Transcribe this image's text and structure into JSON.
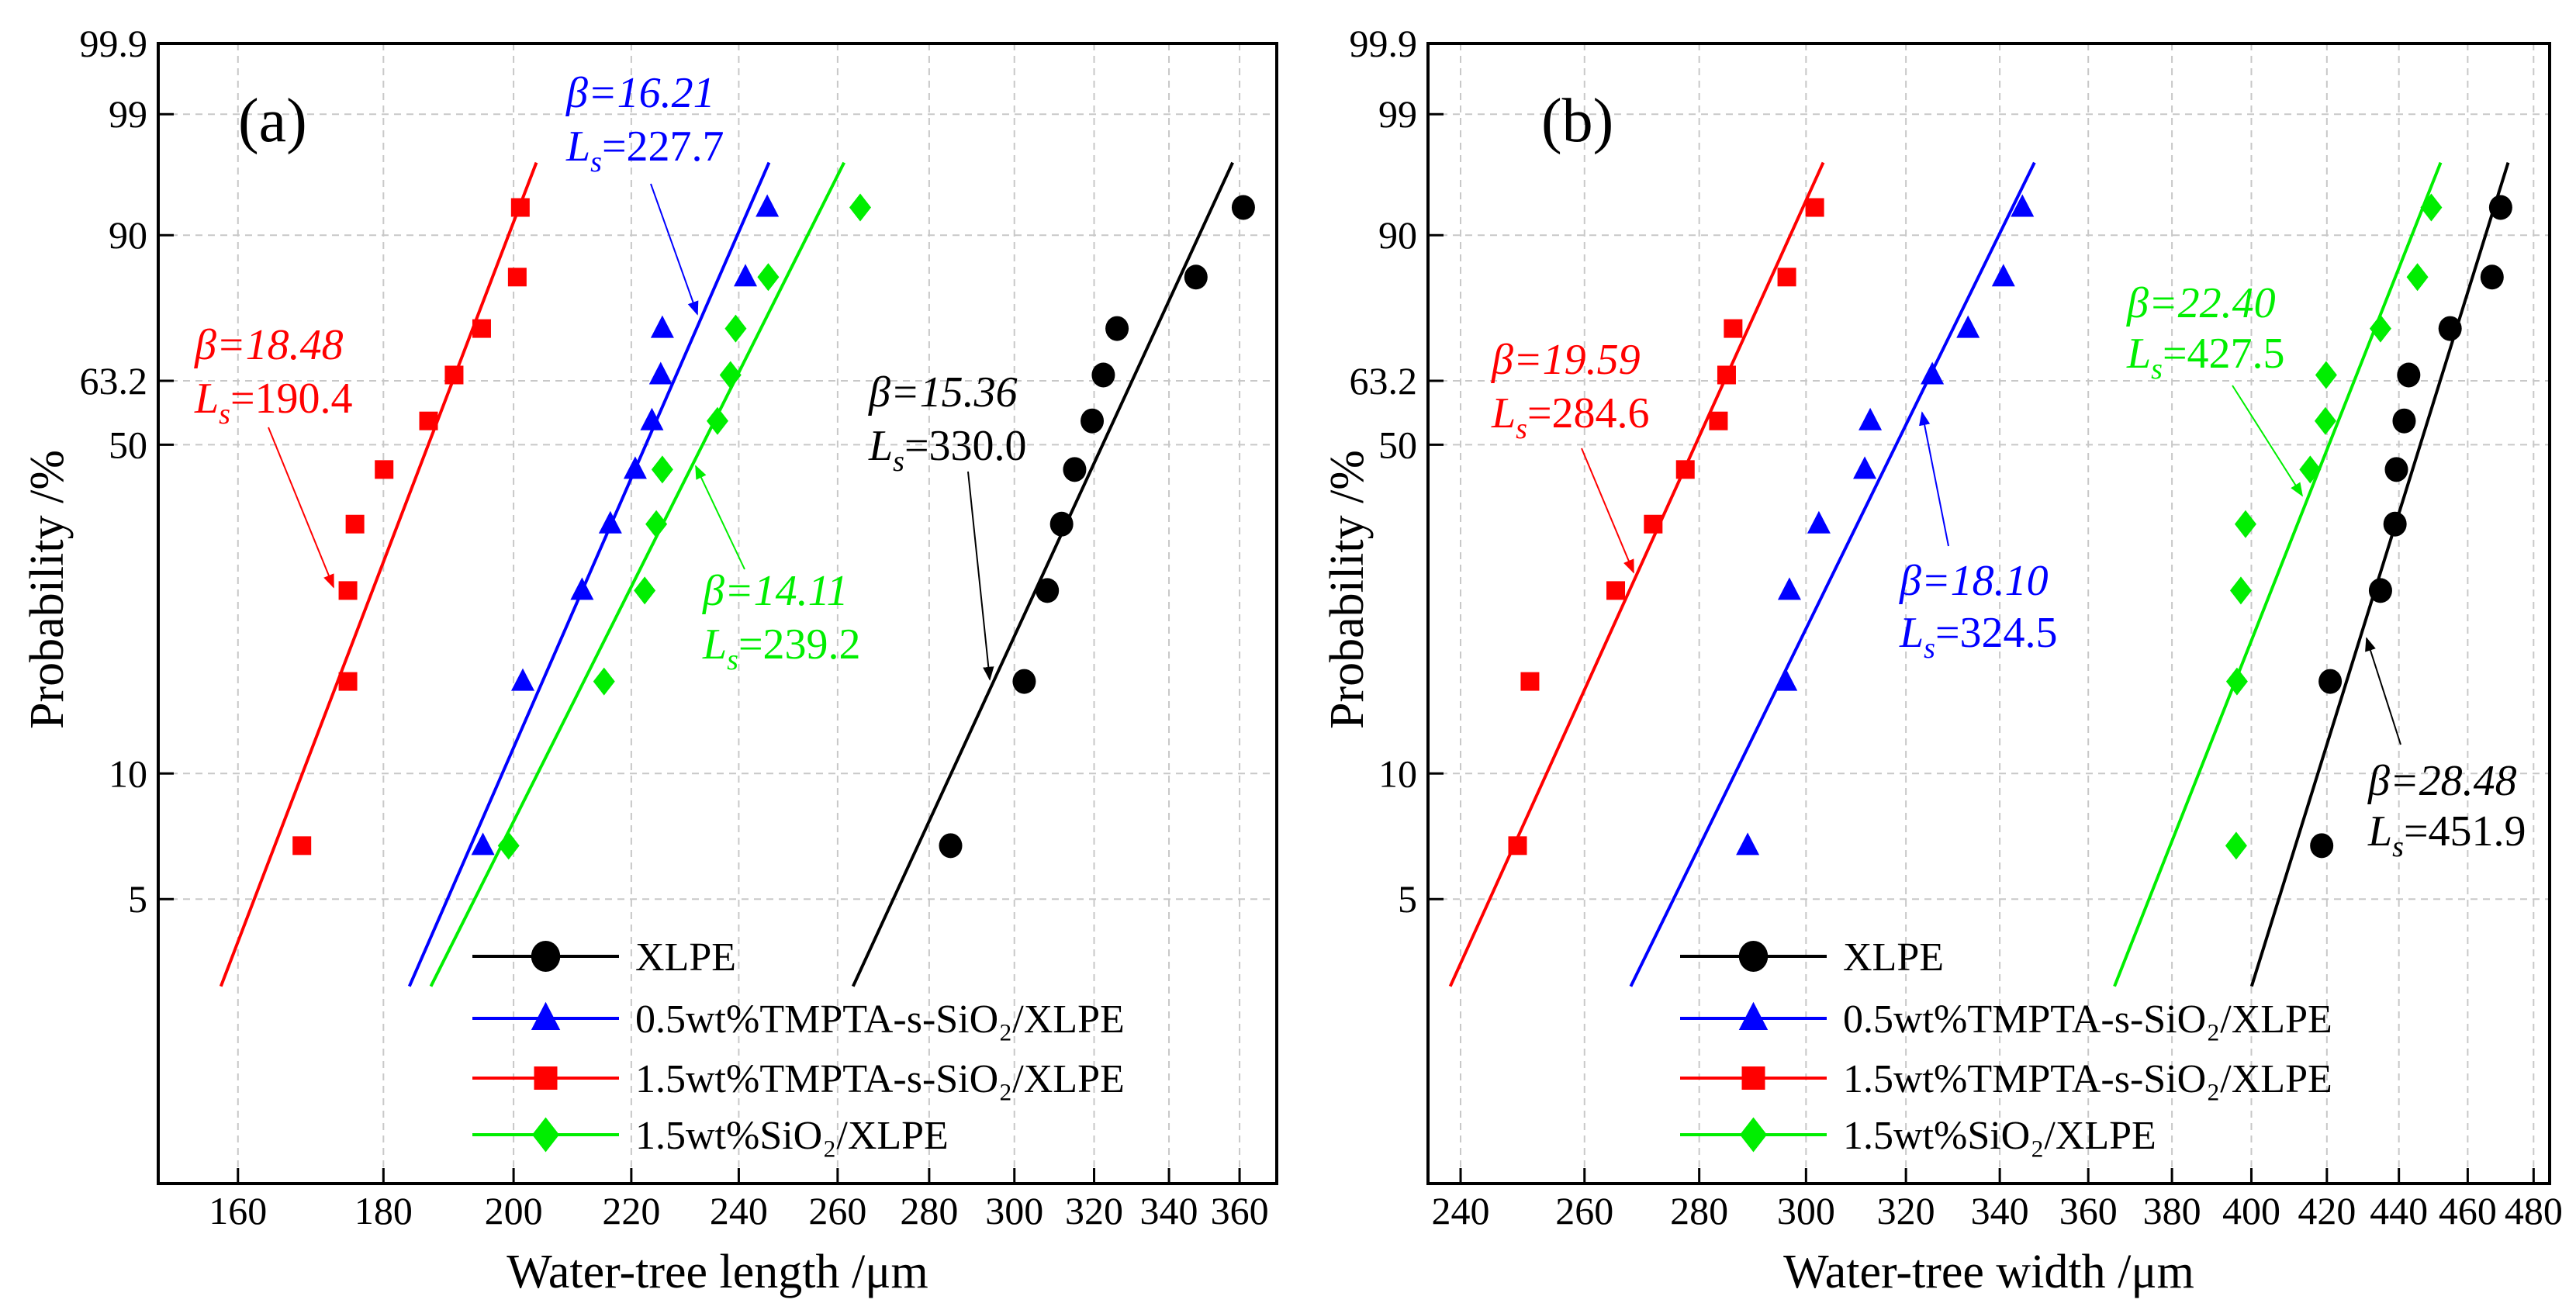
{
  "chart_data": [
    {
      "type": "scatter",
      "panel_label": "(a)",
      "xlabel": "Water-tree length /μm",
      "ylabel": "Probability /%",
      "xscale": "log",
      "yscale": "weibull",
      "xlim": [
        150,
        371
      ],
      "ylim": [
        1,
        99.9
      ],
      "grid": true,
      "legend_position": "bottom-right",
      "xticks": [
        160,
        180,
        200,
        220,
        240,
        260,
        280,
        300,
        320,
        340,
        360
      ],
      "xtick_labels": [
        "160",
        "180",
        "200",
        "220",
        "240",
        "260",
        "280",
        "300",
        "320",
        "340",
        "360"
      ],
      "yticks": [
        5,
        10,
        50,
        63.2,
        90,
        99,
        99.9
      ],
      "ytick_labels": [
        "5",
        "10",
        "50",
        "63.2",
        "90",
        "99",
        "99.9"
      ],
      "series": [
        {
          "name": "XLPE",
          "color": "#000000",
          "marker": "circle",
          "x": [
            284.9,
            302.4,
            308.1,
            311.7,
            315.0,
            319.5,
            322.4,
            326.0,
            347.5,
            361.1
          ],
          "y": [
            6.73,
            16.35,
            25.96,
            35.58,
            45.19,
            54.81,
            64.42,
            74.04,
            83.65,
            93.27
          ],
          "fit": {
            "beta": 15.36,
            "Ls": 330.0
          },
          "annotation": {
            "beta": "β=15.36",
            "ls_symbol": "L",
            "ls_sub": "s",
            "ls_value": "=330.0"
          }
        },
        {
          "name": "0.5wt%TMPTA-s-SiO₂/XLPE",
          "color": "#0000ff",
          "marker": "triangle",
          "x": [
            195.1,
            201.5,
            211.4,
            216.3,
            220.7,
            223.7,
            225.3,
            225.6,
            241.3,
            245.6
          ],
          "y": [
            6.73,
            16.35,
            25.96,
            35.58,
            45.19,
            54.81,
            64.42,
            74.04,
            83.65,
            93.27
          ],
          "fit": {
            "beta": 16.21,
            "Ls": 227.7
          },
          "annotation": {
            "beta": "β=16.21",
            "ls_symbol": "L",
            "ls_sub": "s",
            "ls_value": "=227.7"
          }
        },
        {
          "name": "1.5wt%TMPTA-s-SiO₂/XLPE",
          "color": "#ff0000",
          "marker": "square",
          "x": [
            168.5,
            174.9,
            174.9,
            175.9,
            180.1,
            186.7,
            190.6,
            194.9,
            200.6,
            201.1
          ],
          "y": [
            6.73,
            16.35,
            25.96,
            35.58,
            45.19,
            54.81,
            64.42,
            74.04,
            83.65,
            93.27
          ],
          "fit": {
            "beta": 18.48,
            "Ls": 190.4
          },
          "annotation": {
            "beta": "β=18.48",
            "ls_symbol": "L",
            "ls_sub": "s",
            "ls_value": "=190.4"
          }
        },
        {
          "name": "1.5wt%SiO₂/XLPE",
          "color": "#00ee00",
          "marker": "diamond",
          "x": [
            199.2,
            215.2,
            222.4,
            224.5,
            225.6,
            235.9,
            238.4,
            239.4,
            245.8,
            264.8
          ],
          "y": [
            6.73,
            16.35,
            25.96,
            35.58,
            45.19,
            54.81,
            64.42,
            74.04,
            83.65,
            93.27
          ],
          "fit": {
            "beta": 14.11,
            "Ls": 239.2
          },
          "annotation": {
            "beta": "β=14.11",
            "ls_symbol": "L",
            "ls_sub": "s",
            "ls_value": "=239.2"
          }
        }
      ]
    },
    {
      "type": "scatter",
      "panel_label": "(b)",
      "xlabel": "Water-tree width /μm",
      "ylabel": "Probability /%",
      "xscale": "log",
      "yscale": "weibull",
      "xlim": [
        235,
        485
      ],
      "ylim": [
        1,
        99.9
      ],
      "grid": true,
      "legend_position": "bottom-right",
      "xticks": [
        240,
        260,
        280,
        300,
        320,
        340,
        360,
        380,
        400,
        420,
        440,
        460,
        480
      ],
      "xtick_labels": [
        "240",
        "260",
        "280",
        "300",
        "320",
        "340",
        "360",
        "380",
        "400",
        "420",
        "440",
        "460",
        "480"
      ],
      "yticks": [
        5,
        10,
        50,
        63.2,
        90,
        99,
        99.9
      ],
      "ytick_labels": [
        "5",
        "10",
        "50",
        "63.2",
        "90",
        "99",
        "99.9"
      ],
      "series": [
        {
          "name": "XLPE",
          "color": "#000000",
          "marker": "circle",
          "x": [
            418.6,
            420.9,
            434.8,
            438.9,
            439.3,
            441.5,
            442.8,
            454.8,
            467.3,
            469.9
          ],
          "y": [
            6.73,
            16.35,
            25.96,
            35.58,
            45.19,
            54.81,
            64.42,
            74.04,
            83.65,
            93.27
          ],
          "fit": {
            "beta": 28.48,
            "Ls": 451.9
          },
          "annotation": {
            "beta": "β=28.48",
            "ls_symbol": "L",
            "ls_sub": "s",
            "ls_value": "=451.9"
          }
        },
        {
          "name": "0.5wt%TMPTA-s-SiO₂/XLPE",
          "color": "#0000ff",
          "marker": "triangle",
          "x": [
            288.9,
            296.1,
            296.8,
            302.5,
            311.6,
            312.7,
            325.5,
            333.1,
            340.8,
            345.0
          ],
          "y": [
            6.73,
            16.35,
            25.96,
            35.58,
            45.19,
            54.81,
            64.42,
            74.04,
            83.65,
            93.27
          ],
          "fit": {
            "beta": 18.1,
            "Ls": 324.5
          },
          "annotation": {
            "beta": "β=18.10",
            "ls_symbol": "L",
            "ls_sub": "s",
            "ls_value": "=324.5"
          }
        },
        {
          "name": "1.5wt%TMPTA-s-SiO₂/XLPE",
          "color": "#ff0000",
          "marker": "square",
          "x": [
            249.0,
            251.0,
            265.3,
            271.8,
            277.5,
            283.5,
            285.0,
            286.2,
            296.3,
            301.7
          ],
          "y": [
            6.73,
            16.35,
            25.96,
            35.58,
            45.19,
            54.81,
            64.42,
            74.04,
            83.65,
            93.27
          ],
          "fit": {
            "beta": 19.59,
            "Ls": 284.6
          },
          "annotation": {
            "beta": "β=19.59",
            "ls_symbol": "L",
            "ls_sub": "s",
            "ls_value": "=284.6"
          }
        },
        {
          "name": "1.5wt%SiO₂/XLPE",
          "color": "#00ee00",
          "marker": "diamond",
          "x": [
            396.1,
            396.3,
            397.3,
            398.5,
            415.5,
            419.6,
            419.8,
            434.8,
            445.3,
            449.3
          ],
          "y": [
            6.73,
            16.35,
            25.96,
            35.58,
            45.19,
            54.81,
            64.42,
            74.04,
            83.65,
            93.27
          ],
          "fit": {
            "beta": 22.4,
            "Ls": 427.5
          },
          "annotation": {
            "beta": "β=22.40",
            "ls_symbol": "L",
            "ls_sub": "s",
            "ls_value": "=427.5"
          }
        }
      ]
    }
  ]
}
